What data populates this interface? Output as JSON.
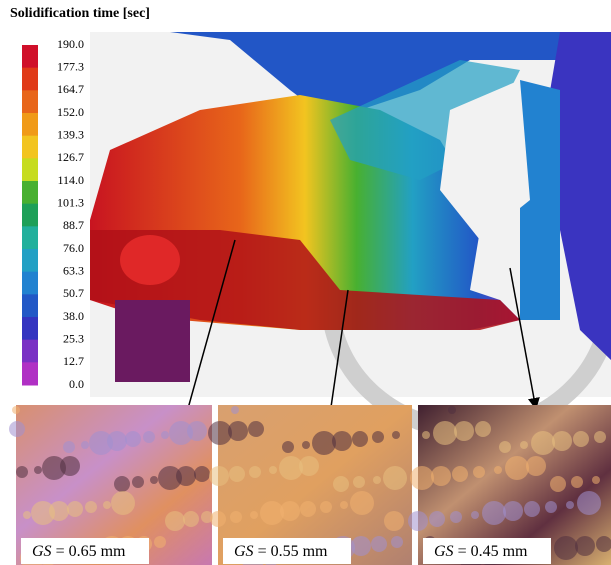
{
  "header": {
    "title": "Solidification time [sec]"
  },
  "legend": {
    "labels": [
      "190.0",
      "177.3",
      "164.7",
      "152.0",
      "139.3",
      "126.7",
      "114.0",
      "101.3",
      "88.7",
      "76.0",
      "63.3",
      "50.7",
      "38.0",
      "25.3",
      "12.7",
      "0.0"
    ],
    "colors": [
      "#d0102a",
      "#e03a18",
      "#e8661a",
      "#f09a18",
      "#f2c420",
      "#c6dc20",
      "#48b030",
      "#1ea058",
      "#22b09c",
      "#22a0c4",
      "#2282d0",
      "#2258c6",
      "#3434c0",
      "#7a30c4",
      "#b030c4"
    ]
  },
  "micrographs": [
    {
      "symbol": "GS",
      "text": "= 0.65 mm"
    },
    {
      "symbol": "GS",
      "text": "= 0.55 mm"
    },
    {
      "symbol": "GS",
      "text": "= 0.45 mm"
    }
  ]
}
